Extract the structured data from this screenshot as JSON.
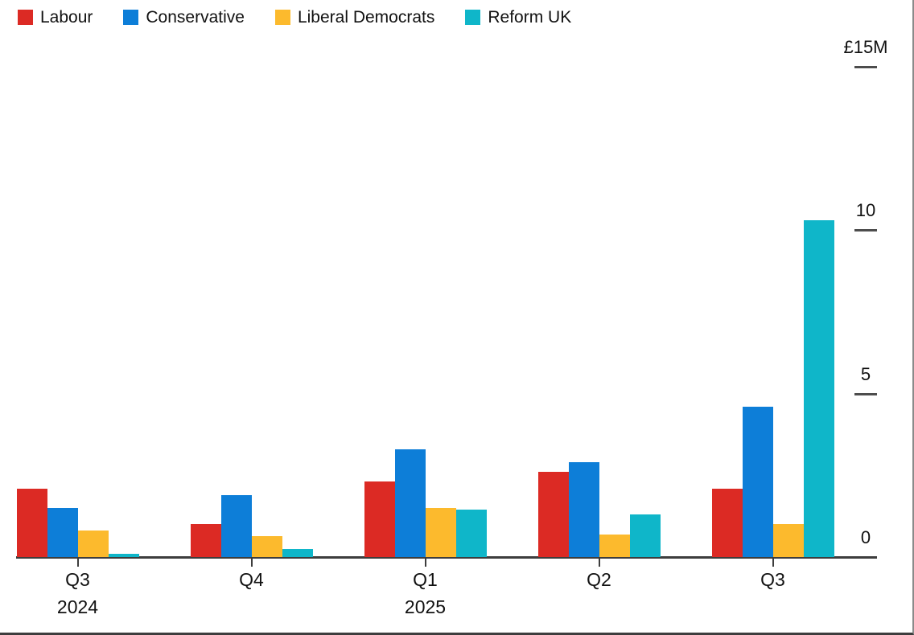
{
  "chart_data": {
    "type": "bar",
    "title": "",
    "unit": "£M",
    "legend_position": "top-left",
    "grid": false,
    "axis_position": "right",
    "ylim": [
      0,
      15
    ],
    "y_ticks": [
      {
        "label": "£15M",
        "value": 15
      },
      {
        "label": "10",
        "value": 10
      },
      {
        "label": "5",
        "value": 5
      },
      {
        "label": "0",
        "value": 0
      }
    ],
    "categories": [
      {
        "quarter": "Q3",
        "year": "2024"
      },
      {
        "quarter": "Q4",
        "year": ""
      },
      {
        "quarter": "Q1",
        "year": "2025"
      },
      {
        "quarter": "Q2",
        "year": ""
      },
      {
        "quarter": "Q3",
        "year": ""
      }
    ],
    "series": [
      {
        "name": "Labour",
        "color": "#dc2a24",
        "values": [
          2.1,
          1.0,
          2.3,
          2.6,
          2.1
        ]
      },
      {
        "name": "Conservative",
        "color": "#0d7ed8",
        "values": [
          1.5,
          1.9,
          3.3,
          2.9,
          4.6
        ]
      },
      {
        "name": "Liberal Democrats",
        "color": "#fcba2d",
        "values": [
          0.8,
          0.65,
          1.5,
          0.7,
          1.0
        ]
      },
      {
        "name": "Reform UK",
        "color": "#0fb6c9",
        "values": [
          0.1,
          0.25,
          1.45,
          1.3,
          10.3
        ]
      }
    ],
    "colors": {
      "axis_line": "#3d3d3d",
      "tick": "#4d4d4d",
      "text": "#111111",
      "background": "#ffffff"
    }
  }
}
